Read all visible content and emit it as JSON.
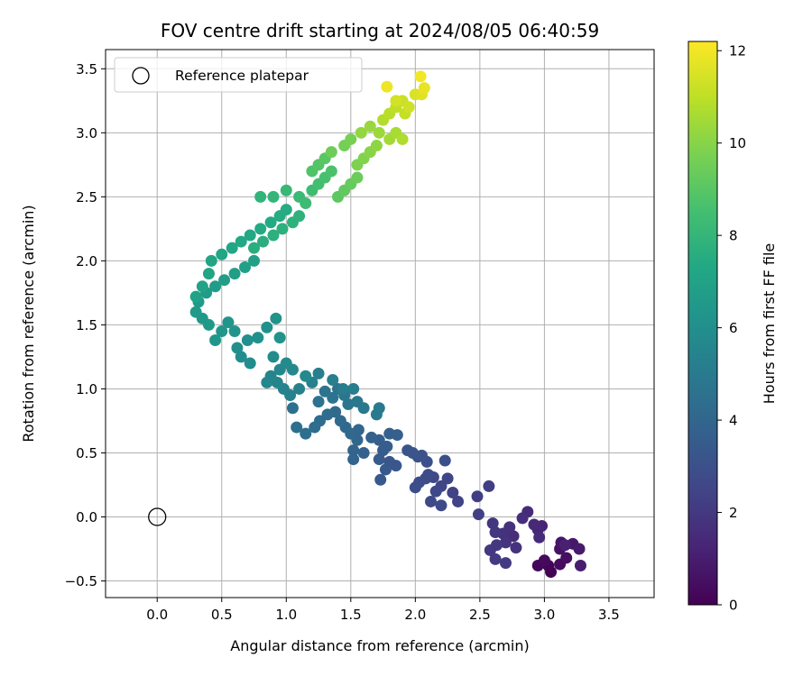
{
  "chart_data": {
    "type": "scatter",
    "title": "FOV centre drift starting at 2024/08/05 06:40:59",
    "xlabel": "Angular distance from reference (arcmin)",
    "ylabel": "Rotation from reference (arcmin)",
    "xlim": [
      -0.4,
      3.85
    ],
    "ylim": [
      -0.63,
      3.65
    ],
    "xticks": [
      "0.0",
      "0.5",
      "1.0",
      "1.5",
      "2.0",
      "2.5",
      "3.0",
      "3.5"
    ],
    "yticks": [
      "−0.5",
      "0.0",
      "0.5",
      "1.0",
      "1.5",
      "2.0",
      "2.5",
      "3.0",
      "3.5"
    ],
    "grid": true,
    "legend": {
      "placement": "top-left",
      "entries": [
        "Reference platepar"
      ]
    },
    "reference_point": {
      "x": 0.0,
      "y": 0.0,
      "style": "open black circle"
    },
    "colorbar": {
      "label": "Hours from first FF file",
      "colormap": "viridis",
      "range": [
        0,
        12.2
      ],
      "ticks": [
        "0",
        "2",
        "4",
        "6",
        "8",
        "10",
        "12"
      ]
    },
    "points_xyc": [
      [
        3.05,
        -0.43,
        0.0
      ],
      [
        3.03,
        -0.38,
        0.1
      ],
      [
        2.95,
        -0.38,
        0.2
      ],
      [
        3.0,
        -0.34,
        0.3
      ],
      [
        3.12,
        -0.37,
        0.4
      ],
      [
        3.17,
        -0.32,
        0.5
      ],
      [
        3.12,
        -0.25,
        0.6
      ],
      [
        3.13,
        -0.2,
        0.7
      ],
      [
        3.22,
        -0.21,
        0.8
      ],
      [
        3.27,
        -0.25,
        0.9
      ],
      [
        3.28,
        -0.38,
        1.0
      ],
      [
        3.16,
        -0.22,
        1.1
      ],
      [
        2.98,
        -0.07,
        1.2
      ],
      [
        2.95,
        -0.1,
        1.3
      ],
      [
        2.92,
        -0.06,
        1.4
      ],
      [
        2.96,
        -0.16,
        1.5
      ],
      [
        2.87,
        0.04,
        1.5
      ],
      [
        2.83,
        -0.01,
        1.6
      ],
      [
        2.76,
        -0.15,
        1.6
      ],
      [
        2.73,
        -0.08,
        1.7
      ],
      [
        2.68,
        -0.13,
        1.7
      ],
      [
        2.7,
        -0.2,
        1.8
      ],
      [
        2.78,
        -0.24,
        1.8
      ],
      [
        2.6,
        -0.05,
        1.9
      ],
      [
        2.62,
        -0.12,
        1.9
      ],
      [
        2.63,
        -0.22,
        2.0
      ],
      [
        2.58,
        -0.26,
        2.0
      ],
      [
        2.62,
        -0.33,
        2.1
      ],
      [
        2.7,
        -0.36,
        2.1
      ],
      [
        2.57,
        0.24,
        2.2
      ],
      [
        2.48,
        0.16,
        2.2
      ],
      [
        2.49,
        0.02,
        2.3
      ],
      [
        2.33,
        0.12,
        2.4
      ],
      [
        2.29,
        0.19,
        2.4
      ],
      [
        2.25,
        0.3,
        2.5
      ],
      [
        2.2,
        0.24,
        2.5
      ],
      [
        2.14,
        0.31,
        2.6
      ],
      [
        2.16,
        0.2,
        2.6
      ],
      [
        2.2,
        0.09,
        2.7
      ],
      [
        2.12,
        0.12,
        2.7
      ],
      [
        2.08,
        0.3,
        2.8
      ],
      [
        2.1,
        0.33,
        2.8
      ],
      [
        2.03,
        0.27,
        2.9
      ],
      [
        2.0,
        0.23,
        2.9
      ],
      [
        2.23,
        0.44,
        3.0
      ],
      [
        2.09,
        0.43,
        3.0
      ],
      [
        2.05,
        0.48,
        3.1
      ],
      [
        2.02,
        0.47,
        3.1
      ],
      [
        1.98,
        0.5,
        3.2
      ],
      [
        1.94,
        0.52,
        3.2
      ],
      [
        1.85,
        0.4,
        3.3
      ],
      [
        1.8,
        0.43,
        3.3
      ],
      [
        1.77,
        0.37,
        3.4
      ],
      [
        1.73,
        0.29,
        3.4
      ],
      [
        1.72,
        0.45,
        3.5
      ],
      [
        1.75,
        0.52,
        3.5
      ],
      [
        1.78,
        0.55,
        3.6
      ],
      [
        1.72,
        0.6,
        3.6
      ],
      [
        1.86,
        0.64,
        3.7
      ],
      [
        1.8,
        0.65,
        3.7
      ],
      [
        1.66,
        0.62,
        3.8
      ],
      [
        1.6,
        0.5,
        3.8
      ],
      [
        1.52,
        0.45,
        3.9
      ],
      [
        1.52,
        0.52,
        3.9
      ],
      [
        1.55,
        0.6,
        4.0
      ],
      [
        1.56,
        0.68,
        4.0
      ],
      [
        1.5,
        0.65,
        4.1
      ],
      [
        1.46,
        0.7,
        4.1
      ],
      [
        1.42,
        0.75,
        4.2
      ],
      [
        1.38,
        0.82,
        4.2
      ],
      [
        1.32,
        0.8,
        4.3
      ],
      [
        1.26,
        0.75,
        4.3
      ],
      [
        1.22,
        0.7,
        4.4
      ],
      [
        1.15,
        0.65,
        4.4
      ],
      [
        1.08,
        0.7,
        4.5
      ],
      [
        1.05,
        0.85,
        4.5
      ],
      [
        1.25,
        0.9,
        4.6
      ],
      [
        1.3,
        0.98,
        4.6
      ],
      [
        1.36,
        0.93,
        4.7
      ],
      [
        1.4,
        1.0,
        4.7
      ],
      [
        1.45,
        0.95,
        4.8
      ],
      [
        1.48,
        0.88,
        4.8
      ],
      [
        1.55,
        0.9,
        4.9
      ],
      [
        1.6,
        0.85,
        4.9
      ],
      [
        1.72,
        0.85,
        5.0
      ],
      [
        1.7,
        0.8,
        5.0
      ],
      [
        1.52,
        1.0,
        5.1
      ],
      [
        1.44,
        1.0,
        5.1
      ],
      [
        1.36,
        1.07,
        5.2
      ],
      [
        1.25,
        1.12,
        5.2
      ],
      [
        1.2,
        1.05,
        5.3
      ],
      [
        1.1,
        1.0,
        5.3
      ],
      [
        1.03,
        0.95,
        5.4
      ],
      [
        0.98,
        1.0,
        5.4
      ],
      [
        0.93,
        1.05,
        5.5
      ],
      [
        0.88,
        1.1,
        5.5
      ],
      [
        0.85,
        1.05,
        5.6
      ],
      [
        0.95,
        1.15,
        5.6
      ],
      [
        1.05,
        1.15,
        5.7
      ],
      [
        1.15,
        1.1,
        5.7
      ],
      [
        1.0,
        1.2,
        5.8
      ],
      [
        0.9,
        1.25,
        5.8
      ],
      [
        0.72,
        1.2,
        5.9
      ],
      [
        0.65,
        1.25,
        5.9
      ],
      [
        0.62,
        1.32,
        6.0
      ],
      [
        0.7,
        1.38,
        6.0
      ],
      [
        0.78,
        1.4,
        6.1
      ],
      [
        0.85,
        1.48,
        6.1
      ],
      [
        0.92,
        1.55,
        6.2
      ],
      [
        0.95,
        1.4,
        6.2
      ],
      [
        0.6,
        1.45,
        6.3
      ],
      [
        0.55,
        1.52,
        6.3
      ],
      [
        0.5,
        1.45,
        6.4
      ],
      [
        0.45,
        1.38,
        6.4
      ],
      [
        0.4,
        1.5,
        6.5
      ],
      [
        0.35,
        1.55,
        6.5
      ],
      [
        0.3,
        1.6,
        6.6
      ],
      [
        0.32,
        1.68,
        6.6
      ],
      [
        0.38,
        1.75,
        6.7
      ],
      [
        0.45,
        1.8,
        6.7
      ],
      [
        0.52,
        1.85,
        6.8
      ],
      [
        0.6,
        1.9,
        6.8
      ],
      [
        0.68,
        1.95,
        6.9
      ],
      [
        0.75,
        2.0,
        6.9
      ],
      [
        0.3,
        1.72,
        7.0
      ],
      [
        0.35,
        1.8,
        7.0
      ],
      [
        0.4,
        1.9,
        7.1
      ],
      [
        0.42,
        2.0,
        7.1
      ],
      [
        0.5,
        2.05,
        7.2
      ],
      [
        0.58,
        2.1,
        7.2
      ],
      [
        0.65,
        2.15,
        7.3
      ],
      [
        0.72,
        2.2,
        7.3
      ],
      [
        0.8,
        2.25,
        7.4
      ],
      [
        0.88,
        2.3,
        7.4
      ],
      [
        0.95,
        2.35,
        7.5
      ],
      [
        1.0,
        2.4,
        7.5
      ],
      [
        0.75,
        2.1,
        7.6
      ],
      [
        0.82,
        2.15,
        7.6
      ],
      [
        0.9,
        2.2,
        7.7
      ],
      [
        0.97,
        2.25,
        7.7
      ],
      [
        1.05,
        2.3,
        7.8
      ],
      [
        1.1,
        2.35,
        7.8
      ],
      [
        0.8,
        2.5,
        7.9
      ],
      [
        0.9,
        2.5,
        8.0
      ],
      [
        1.0,
        2.55,
        8.1
      ],
      [
        1.1,
        2.5,
        8.2
      ],
      [
        1.15,
        2.45,
        8.3
      ],
      [
        1.2,
        2.55,
        8.4
      ],
      [
        1.25,
        2.6,
        8.5
      ],
      [
        1.3,
        2.65,
        8.6
      ],
      [
        1.35,
        2.7,
        8.7
      ],
      [
        1.2,
        2.7,
        8.8
      ],
      [
        1.25,
        2.75,
        8.9
      ],
      [
        1.3,
        2.8,
        9.0
      ],
      [
        1.4,
        2.5,
        9.1
      ],
      [
        1.45,
        2.55,
        9.2
      ],
      [
        1.5,
        2.6,
        9.3
      ],
      [
        1.55,
        2.65,
        9.4
      ],
      [
        1.35,
        2.85,
        9.5
      ],
      [
        1.45,
        2.9,
        9.6
      ],
      [
        1.5,
        2.95,
        9.7
      ],
      [
        1.55,
        2.75,
        9.8
      ],
      [
        1.6,
        2.8,
        9.9
      ],
      [
        1.65,
        2.85,
        10.0
      ],
      [
        1.7,
        2.9,
        10.1
      ],
      [
        1.58,
        3.0,
        10.2
      ],
      [
        1.65,
        3.05,
        10.3
      ],
      [
        1.72,
        3.0,
        10.4
      ],
      [
        1.8,
        2.95,
        10.5
      ],
      [
        1.85,
        3.0,
        10.6
      ],
      [
        1.9,
        2.95,
        10.7
      ],
      [
        1.75,
        3.1,
        10.8
      ],
      [
        1.8,
        3.15,
        10.9
      ],
      [
        1.85,
        3.2,
        11.0
      ],
      [
        1.92,
        3.15,
        11.1
      ],
      [
        1.9,
        3.25,
        11.2
      ],
      [
        1.95,
        3.2,
        11.3
      ],
      [
        1.85,
        3.25,
        11.4
      ],
      [
        2.0,
        3.3,
        11.5
      ],
      [
        2.05,
        3.3,
        11.6
      ],
      [
        2.07,
        3.35,
        11.8
      ],
      [
        2.04,
        3.44,
        12.0
      ],
      [
        1.78,
        3.36,
        11.9
      ]
    ]
  }
}
